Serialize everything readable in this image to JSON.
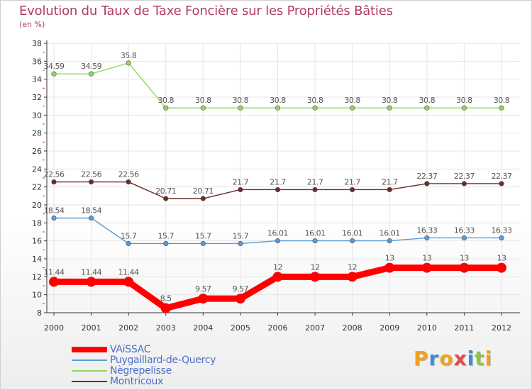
{
  "title": "Evolution du Taux de Taxe Foncière sur les Propriétés Bâties",
  "subtitle": "(en %)",
  "logo": "Proxiti",
  "chart_data": {
    "type": "line",
    "x": [
      "2000",
      "2001",
      "2002",
      "2003",
      "2004",
      "2005",
      "2006",
      "2007",
      "2008",
      "2009",
      "2010",
      "2011",
      "2012"
    ],
    "ylim": [
      8,
      38
    ],
    "yticks": [
      8,
      10,
      12,
      14,
      16,
      18,
      20,
      22,
      24,
      26,
      28,
      30,
      32,
      34,
      36,
      38
    ],
    "grid": true,
    "legend_position": "bottom-left",
    "series": [
      {
        "name": "VAïSSAC",
        "color": "#ff0000",
        "values": [
          11.44,
          11.44,
          11.44,
          8.5,
          9.57,
          9.57,
          12,
          12,
          12,
          13,
          13,
          13,
          13
        ],
        "labels": [
          "11.44",
          "11.44",
          "11.44",
          "8.5",
          "9.57",
          "9.57",
          "12",
          "12",
          "12",
          "13",
          "13",
          "13",
          "13"
        ]
      },
      {
        "name": "Puygaillard-de-Quercy",
        "color": "#5b9bd5",
        "values": [
          18.54,
          18.54,
          15.7,
          15.7,
          15.7,
          15.7,
          16.01,
          16.01,
          16.01,
          16.01,
          16.33,
          16.33,
          16.33
        ],
        "labels": [
          "18.54",
          "18.54",
          "15.7",
          "15.7",
          "15.7",
          "15.7",
          "16.01",
          "16.01",
          "16.01",
          "16.01",
          "16.33",
          "16.33",
          "16.33"
        ]
      },
      {
        "name": "Nègrepelisse",
        "color": "#8ed85a",
        "values": [
          34.59,
          34.59,
          35.8,
          30.8,
          30.8,
          30.8,
          30.8,
          30.8,
          30.8,
          30.8,
          30.8,
          30.8,
          30.8
        ],
        "labels": [
          "34.59",
          "34.59",
          "35.8",
          "30.8",
          "30.8",
          "30.8",
          "30.8",
          "30.8",
          "30.8",
          "30.8",
          "30.8",
          "30.8",
          "30.8"
        ]
      },
      {
        "name": "Montricoux",
        "color": "#6b2b2b",
        "values": [
          22.56,
          22.56,
          22.56,
          20.71,
          20.71,
          21.7,
          21.7,
          21.7,
          21.7,
          21.7,
          22.37,
          22.37,
          22.37
        ],
        "labels": [
          "22.56",
          "22.56",
          "22.56",
          "20.71",
          "20.71",
          "21.7",
          "21.7",
          "21.7",
          "21.7",
          "21.7",
          "22.37",
          "22.37",
          "22.37"
        ]
      }
    ]
  },
  "styles": {
    "title_color": "#b03a6a",
    "grid_color": "#e6e6e6",
    "axis_color": "#333333",
    "legend_text_color": "#4d6fc4",
    "logo_colors": [
      "#f2a11f",
      "#3b8fd6",
      "#f2a11f",
      "#e34a4a",
      "#3b8fd6",
      "#8cc63f",
      "#f2a11f"
    ]
  }
}
